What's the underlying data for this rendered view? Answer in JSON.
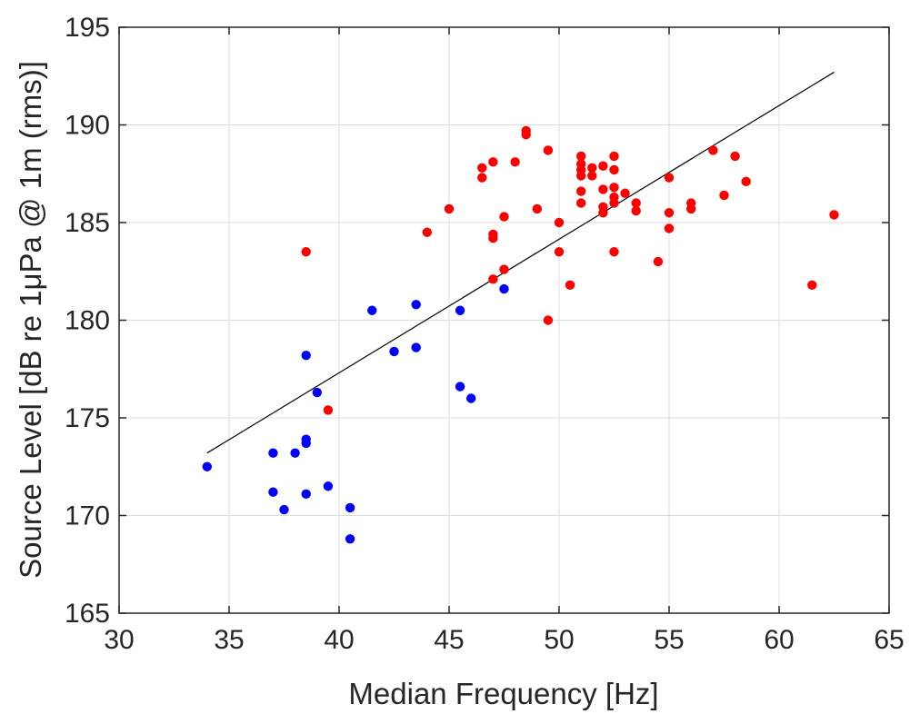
{
  "chart_data": {
    "type": "scatter",
    "xlabel": "Median Frequency [Hz]",
    "ylabel": "Source Level [dB re 1μPa @ 1m (rms)]",
    "xlim": [
      30,
      65
    ],
    "ylim": [
      165,
      195
    ],
    "xticks": [
      30,
      35,
      40,
      45,
      50,
      55,
      60,
      65
    ],
    "yticks": [
      165,
      170,
      175,
      180,
      185,
      190,
      195
    ],
    "grid": true,
    "series": [
      {
        "color": "#0000ff",
        "points": [
          [
            34,
            172.5
          ],
          [
            37,
            173.2
          ],
          [
            37,
            171.2
          ],
          [
            37.5,
            170.3
          ],
          [
            38,
            173.2
          ],
          [
            38.5,
            173.9
          ],
          [
            38.5,
            173.7
          ],
          [
            38.5,
            171.1
          ],
          [
            38.5,
            178.2
          ],
          [
            39,
            176.3
          ],
          [
            39.5,
            171.5
          ],
          [
            40.5,
            170.4
          ],
          [
            40.5,
            168.8
          ],
          [
            41.5,
            180.5
          ],
          [
            42.5,
            178.4
          ],
          [
            43.5,
            180.8
          ],
          [
            43.5,
            178.6
          ],
          [
            45.5,
            180.5
          ],
          [
            45.5,
            176.6
          ],
          [
            46,
            176.0
          ],
          [
            47.5,
            181.6
          ]
        ]
      },
      {
        "color": "#ff0000",
        "points": [
          [
            38.5,
            183.5
          ],
          [
            39.5,
            175.4
          ],
          [
            44,
            184.5
          ],
          [
            45,
            185.7
          ],
          [
            46.5,
            187.8
          ],
          [
            46.5,
            187.3
          ],
          [
            47,
            188.1
          ],
          [
            47,
            184.4
          ],
          [
            47,
            184.2
          ],
          [
            47,
            182.1
          ],
          [
            47.5,
            185.3
          ],
          [
            47.5,
            182.6
          ],
          [
            48,
            188.1
          ],
          [
            48.5,
            189.7
          ],
          [
            48.5,
            189.5
          ],
          [
            49,
            185.7
          ],
          [
            49.5,
            188.7
          ],
          [
            49.5,
            180.0
          ],
          [
            50,
            185.0
          ],
          [
            50,
            183.5
          ],
          [
            50.5,
            181.8
          ],
          [
            51,
            188.4
          ],
          [
            51,
            188.0
          ],
          [
            51,
            187.7
          ],
          [
            51,
            187.4
          ],
          [
            51,
            186.6
          ],
          [
            51,
            186.0
          ],
          [
            51.5,
            187.8
          ],
          [
            51.5,
            187.4
          ],
          [
            52,
            187.9
          ],
          [
            52,
            186.7
          ],
          [
            52,
            185.8
          ],
          [
            52,
            185.5
          ],
          [
            52.5,
            188.4
          ],
          [
            52.5,
            187.7
          ],
          [
            52.5,
            186.8
          ],
          [
            52.5,
            186.3
          ],
          [
            52.5,
            186.0
          ],
          [
            52.5,
            183.5
          ],
          [
            53,
            186.5
          ],
          [
            53.5,
            186.0
          ],
          [
            53.5,
            185.6
          ],
          [
            54.5,
            183.0
          ],
          [
            55,
            187.3
          ],
          [
            55,
            185.5
          ],
          [
            55,
            184.7
          ],
          [
            56,
            186.0
          ],
          [
            56,
            185.7
          ],
          [
            57,
            188.7
          ],
          [
            57.5,
            186.4
          ],
          [
            58,
            188.4
          ],
          [
            58.5,
            187.1
          ],
          [
            61.5,
            181.8
          ],
          [
            62.5,
            185.4
          ]
        ]
      }
    ],
    "fit_line": {
      "color": "#000000",
      "x": [
        34,
        62.5
      ],
      "y": [
        173.2,
        192.7
      ]
    }
  }
}
